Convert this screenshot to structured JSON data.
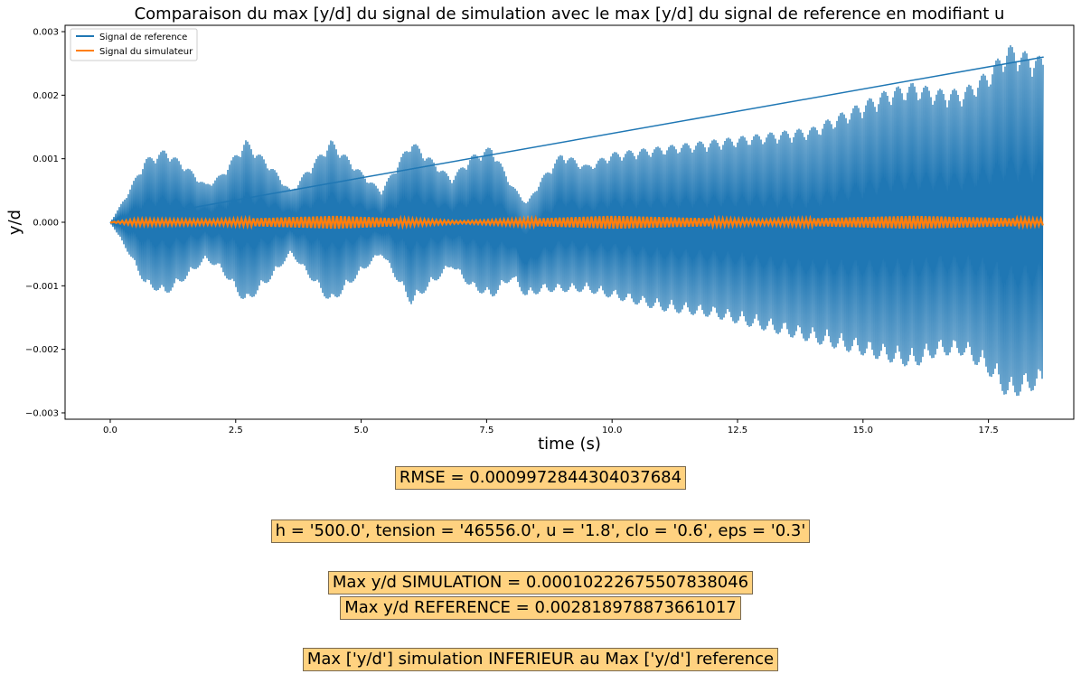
{
  "chart_data": {
    "type": "line",
    "title": "Comparaison du max [y/d] du signal de simulation avec le max [y/d] du signal de reference en modifiant u",
    "xlabel": "time (s)",
    "ylabel": "y/d",
    "xlim": [
      -0.9,
      19.2
    ],
    "ylim": [
      -0.0031,
      0.0031
    ],
    "xticks": [
      0.0,
      2.5,
      5.0,
      7.5,
      10.0,
      12.5,
      15.0,
      17.5
    ],
    "xtick_labels": [
      "0.0",
      "2.5",
      "5.0",
      "7.5",
      "10.0",
      "12.5",
      "15.0",
      "17.5"
    ],
    "yticks": [
      -0.003,
      -0.002,
      -0.001,
      0.0,
      0.001,
      0.002,
      0.003
    ],
    "ytick_labels": [
      "−0.003",
      "−0.002",
      "−0.001",
      "0.000",
      "0.001",
      "0.002",
      "0.003"
    ],
    "grid": false,
    "legend_position": "top-left",
    "series": [
      {
        "name": "Signal de reference",
        "color": "#1f77b4",
        "kind": "oscillation-envelope",
        "t_end": 18.6,
        "envelope_t": [
          0.0,
          0.3,
          0.7,
          1.1,
          1.5,
          1.9,
          2.2,
          2.7,
          3.2,
          3.6,
          4.4,
          5.0,
          5.4,
          6.0,
          6.8,
          7.2,
          7.6,
          8.0,
          8.3,
          8.6,
          9.0,
          9.5,
          10.0,
          11.0,
          12.0,
          13.0,
          14.0,
          14.5,
          15.0,
          15.5,
          16.0,
          16.5,
          17.0,
          17.5,
          17.9,
          18.2,
          18.6
        ],
        "envelope_max": [
          0.0,
          0.0004,
          0.001,
          0.00115,
          0.0009,
          0.0006,
          0.00075,
          0.0013,
          0.0009,
          0.0005,
          0.0013,
          0.0008,
          0.0005,
          0.0013,
          0.0007,
          0.00105,
          0.0012,
          0.0006,
          0.0003,
          0.0007,
          0.0011,
          0.0009,
          0.0011,
          0.0012,
          0.0013,
          0.0014,
          0.0015,
          0.0017,
          0.0019,
          0.0021,
          0.0022,
          0.0021,
          0.0021,
          0.0024,
          0.0028,
          0.0027,
          0.0026
        ],
        "envelope_min": [
          0.0,
          -0.0004,
          -0.001,
          -0.00115,
          -0.0009,
          -0.0006,
          -0.00075,
          -0.0013,
          -0.0009,
          -0.0005,
          -0.0013,
          -0.0008,
          -0.0005,
          -0.0013,
          -0.0007,
          -0.00105,
          -0.0012,
          -0.0009,
          -0.0012,
          -0.0011,
          -0.0011,
          -0.0011,
          -0.0012,
          -0.0014,
          -0.0015,
          -0.0017,
          -0.0019,
          -0.002,
          -0.0021,
          -0.0022,
          -0.0023,
          -0.0021,
          -0.0021,
          -0.0024,
          -0.0028,
          -0.0027,
          -0.0026
        ],
        "return_line": {
          "x": [
            18.6,
            0.0
          ],
          "y": [
            0.0026,
            0.0
          ]
        }
      },
      {
        "name": "Signal du simulateur",
        "color": "#ff7f0e",
        "kind": "oscillation-envelope",
        "t_end": 18.6,
        "envelope_t": [
          0.0,
          0.5,
          2.0,
          4.5,
          7.0,
          10.0,
          13.0,
          16.0,
          18.6
        ],
        "envelope_max": [
          0.0,
          5e-05,
          4e-05,
          0.0001,
          2e-05,
          0.0001,
          4e-05,
          0.0001,
          5e-05
        ],
        "envelope_min": [
          0.0,
          -5e-05,
          -4e-05,
          -0.0001,
          -2e-05,
          -0.0001,
          -4e-05,
          -0.0001,
          -5e-05
        ]
      }
    ]
  },
  "annotations": {
    "rmse": "RMSE = 0.0009972844304037684",
    "params": "h = '500.0', tension = '46556.0', u = '1.8', clo = '0.6', eps = '0.3'",
    "max_sim": "Max y/d SIMULATION = 0.00010222675507838046",
    "max_ref": "Max y/d REFERENCE = 0.002818978873661017",
    "conclusion": "Max ['y/d'] simulation INFERIEUR au Max ['y/d'] reference"
  },
  "colors": {
    "box_fill": "#ffd280",
    "reference": "#1f77b4",
    "simulation": "#ff7f0e"
  }
}
